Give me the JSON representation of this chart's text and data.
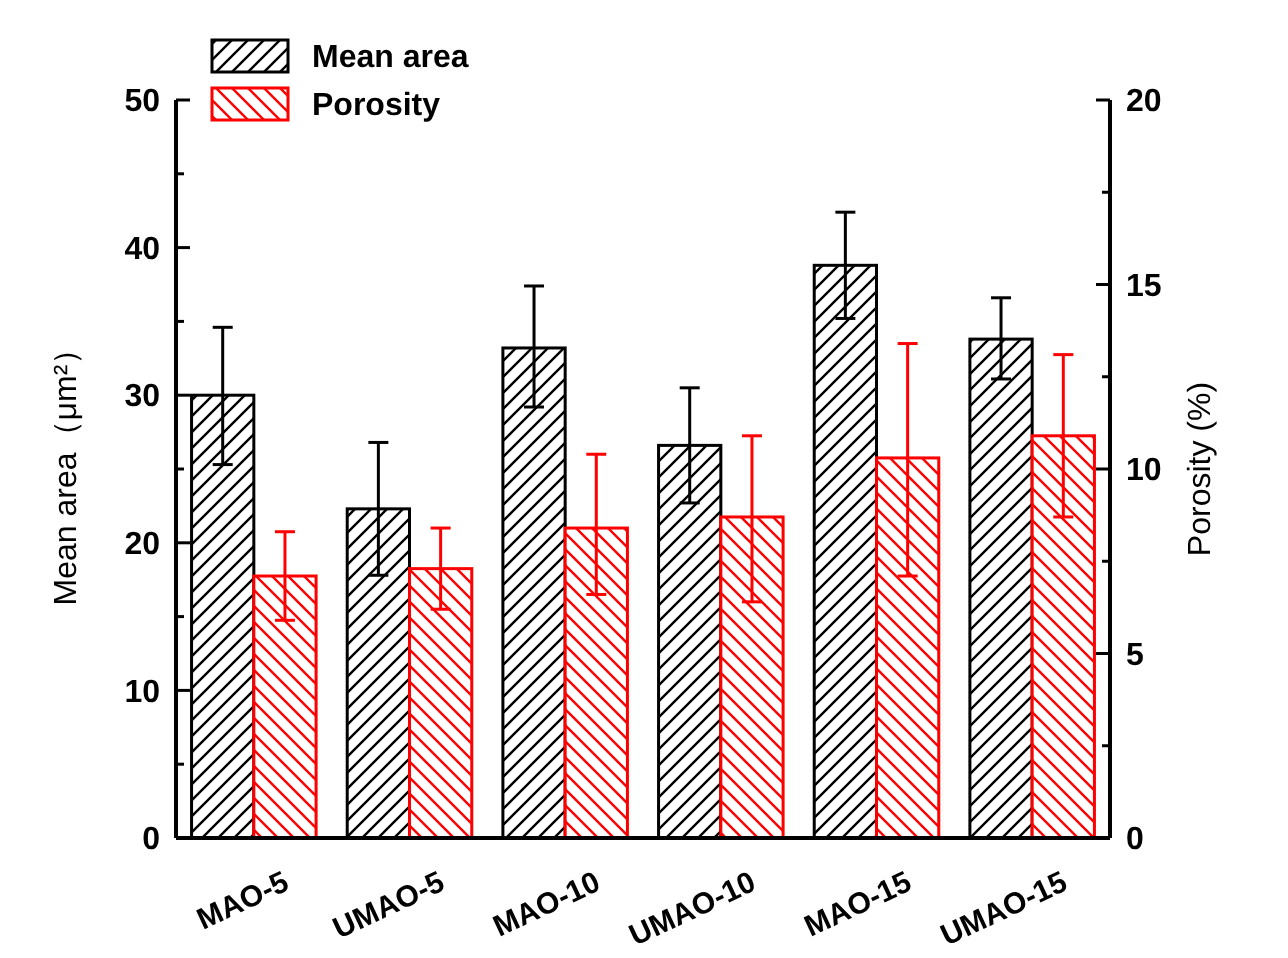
{
  "chart_data": {
    "type": "bar",
    "ylabel": "Mean area（μm²）",
    "y2label": "Porosity (%)",
    "categories": [
      "MAO-5",
      "UMAO-5",
      "MAO-10",
      "UMAO-10",
      "MAO-15",
      "UMAO-15"
    ],
    "series": [
      {
        "name": "Mean area",
        "color": "#000000",
        "values": [
          30.0,
          22.3,
          33.2,
          26.6,
          38.8,
          33.8
        ],
        "errors": [
          [
            25.3,
            34.6
          ],
          [
            17.8,
            26.8
          ],
          [
            29.2,
            37.4
          ],
          [
            22.7,
            30.5
          ],
          [
            35.2,
            42.4
          ],
          [
            31.1,
            36.6
          ]
        ]
      },
      {
        "name": "Porosity",
        "color": "#ff0000",
        "axis": "y2",
        "values": [
          7.1,
          7.3,
          8.4,
          8.7,
          10.3,
          10.9
        ],
        "errors": [
          [
            5.9,
            8.3
          ],
          [
            6.2,
            8.4
          ],
          [
            6.6,
            10.4
          ],
          [
            6.4,
            10.9
          ],
          [
            7.1,
            13.4
          ],
          [
            8.7,
            13.1
          ]
        ]
      }
    ],
    "ylim": [
      0,
      50
    ],
    "yticks": [
      0,
      {
        "value": 5,
        "label": null
      },
      10,
      {
        "value": 15,
        "label": null
      },
      20,
      {
        "value": 25,
        "label": null
      },
      30,
      {
        "value": 35,
        "label": null
      },
      40,
      {
        "value": 45,
        "label": null
      },
      50
    ],
    "y2lim": [
      0,
      20
    ],
    "y2ticks": [
      0,
      {
        "value": 2.5,
        "label": null
      },
      5,
      {
        "value": 7.5,
        "label": null
      },
      10,
      {
        "value": 12.5,
        "label": null
      },
      15,
      {
        "value": 17.5,
        "label": null
      },
      20
    ],
    "legend": "top left",
    "grid": false
  }
}
